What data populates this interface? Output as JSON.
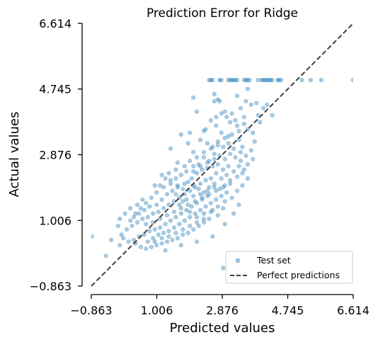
{
  "chart_data": {
    "type": "scatter",
    "title": "Prediction Error for Ridge",
    "xlabel": "Predicted values",
    "ylabel": "Actual values",
    "xlim": [
      -0.863,
      6.614
    ],
    "ylim": [
      -0.863,
      6.614
    ],
    "xticks": [
      "-0.863",
      "1.006",
      "2.876",
      "4.745",
      "6.614"
    ],
    "yticks": [
      "-0.863",
      "1.006",
      "2.876",
      "4.745",
      "6.614"
    ],
    "grid": false,
    "legend_position": "lower-right",
    "colors": {
      "points": "#1f77b4",
      "diagonal": "#404040"
    },
    "series": [
      {
        "name": "Test set",
        "kind": "scatter",
        "points": [
          [
            2.5,
            5.0
          ],
          [
            2.55,
            5.0
          ],
          [
            2.6,
            5.0
          ],
          [
            2.8,
            5.0
          ],
          [
            2.85,
            5.0
          ],
          [
            3.05,
            5.0
          ],
          [
            3.1,
            5.0
          ],
          [
            3.15,
            5.0
          ],
          [
            3.2,
            5.0
          ],
          [
            3.25,
            5.0
          ],
          [
            3.3,
            5.0
          ],
          [
            3.5,
            5.0
          ],
          [
            3.55,
            5.0
          ],
          [
            3.6,
            5.0
          ],
          [
            3.65,
            5.0
          ],
          [
            3.9,
            5.0
          ],
          [
            4.0,
            5.0
          ],
          [
            4.05,
            5.0
          ],
          [
            4.1,
            5.0
          ],
          [
            4.15,
            5.0
          ],
          [
            4.2,
            5.0
          ],
          [
            4.25,
            5.0
          ],
          [
            4.3,
            5.0
          ],
          [
            4.45,
            5.0
          ],
          [
            4.5,
            5.0
          ],
          [
            4.55,
            5.0
          ],
          [
            5.15,
            5.0
          ],
          [
            5.4,
            5.0
          ],
          [
            5.7,
            5.0
          ],
          [
            6.61,
            5.0
          ],
          [
            2.05,
            4.5
          ],
          [
            2.65,
            4.6
          ],
          [
            2.75,
            4.45
          ],
          [
            2.65,
            4.4
          ],
          [
            2.8,
            4.4
          ],
          [
            3.3,
            4.55
          ],
          [
            3.55,
            4.4
          ],
          [
            3.7,
            4.3
          ],
          [
            3.85,
            4.35
          ],
          [
            4.15,
            4.3
          ],
          [
            4.05,
            4.2
          ],
          [
            3.4,
            4.2
          ],
          [
            2.95,
            4.1
          ],
          [
            3.15,
            4.05
          ],
          [
            2.7,
            3.95
          ],
          [
            3.5,
            3.95
          ],
          [
            3.9,
            4.0
          ],
          [
            4.3,
            4.0
          ],
          [
            3.1,
            3.8
          ],
          [
            3.3,
            3.7
          ],
          [
            2.4,
            3.6
          ],
          [
            1.95,
            3.5
          ],
          [
            2.7,
            3.7
          ],
          [
            3.6,
            3.6
          ],
          [
            3.75,
            3.5
          ],
          [
            3.95,
            3.8
          ],
          [
            3.05,
            3.4
          ],
          [
            3.8,
            3.25
          ],
          [
            3.45,
            3.1
          ],
          [
            1.6,
            2.65
          ],
          [
            1.4,
            3.05
          ],
          [
            1.9,
            3.2
          ],
          [
            2.05,
            2.95
          ],
          [
            2.25,
            3.3
          ],
          [
            2.45,
            3.2
          ],
          [
            2.6,
            3.1
          ],
          [
            2.75,
            3.25
          ],
          [
            2.9,
            3.1
          ],
          [
            3.05,
            3.2
          ],
          [
            3.2,
            3.05
          ],
          [
            3.35,
            3.3
          ],
          [
            3.1,
            2.9
          ],
          [
            3.25,
            2.8
          ],
          [
            3.4,
            2.7
          ],
          [
            2.95,
            2.75
          ],
          [
            2.8,
            2.85
          ],
          [
            2.65,
            2.9
          ],
          [
            2.5,
            2.7
          ],
          [
            2.35,
            2.8
          ],
          [
            2.2,
            2.6
          ],
          [
            2.05,
            2.55
          ],
          [
            1.85,
            2.4
          ],
          [
            1.7,
            2.3
          ],
          [
            1.55,
            2.2
          ],
          [
            1.25,
            2.2
          ],
          [
            1.1,
            2.0
          ],
          [
            1.4,
            2.05
          ],
          [
            1.6,
            1.95
          ],
          [
            1.8,
            2.05
          ],
          [
            2.0,
            2.2
          ],
          [
            2.15,
            2.35
          ],
          [
            2.3,
            2.45
          ],
          [
            2.45,
            2.5
          ],
          [
            2.6,
            2.55
          ],
          [
            2.75,
            2.6
          ],
          [
            2.9,
            2.45
          ],
          [
            3.05,
            2.55
          ],
          [
            3.2,
            2.4
          ],
          [
            3.35,
            2.55
          ],
          [
            3.5,
            2.45
          ],
          [
            3.0,
            2.3
          ],
          [
            2.85,
            2.2
          ],
          [
            2.7,
            2.35
          ],
          [
            2.55,
            2.2
          ],
          [
            2.4,
            2.15
          ],
          [
            2.25,
            2.05
          ],
          [
            2.1,
            1.95
          ],
          [
            1.95,
            1.85
          ],
          [
            1.8,
            1.75
          ],
          [
            1.65,
            1.65
          ],
          [
            1.5,
            1.55
          ],
          [
            1.35,
            1.45
          ],
          [
            1.2,
            1.35
          ],
          [
            1.05,
            1.25
          ],
          [
            0.9,
            1.2
          ],
          [
            0.75,
            1.1
          ],
          [
            0.6,
            1.05
          ],
          [
            0.45,
            0.95
          ],
          [
            0.3,
            0.85
          ],
          [
            0.15,
            0.75
          ],
          [
            0.0,
            0.6
          ],
          [
            -0.1,
            0.85
          ],
          [
            0.25,
            1.0
          ],
          [
            0.4,
            1.2
          ],
          [
            0.55,
            1.35
          ],
          [
            0.7,
            1.5
          ],
          [
            0.85,
            1.65
          ],
          [
            1.0,
            1.8
          ],
          [
            1.15,
            1.6
          ],
          [
            1.3,
            1.75
          ],
          [
            1.45,
            1.85
          ],
          [
            1.6,
            2.0
          ],
          [
            1.75,
            1.9
          ],
          [
            1.9,
            2.1
          ],
          [
            2.05,
            2.0
          ],
          [
            2.2,
            1.9
          ],
          [
            2.35,
            1.8
          ],
          [
            2.5,
            1.95
          ],
          [
            2.65,
            2.05
          ],
          [
            2.8,
            1.9
          ],
          [
            2.95,
            2.0
          ],
          [
            3.1,
            2.15
          ],
          [
            2.45,
            1.7
          ],
          [
            2.3,
            1.6
          ],
          [
            2.15,
            1.5
          ],
          [
            2.0,
            1.4
          ],
          [
            1.85,
            1.3
          ],
          [
            1.7,
            1.2
          ],
          [
            1.55,
            1.1
          ],
          [
            1.4,
            1.0
          ],
          [
            1.25,
            0.9
          ],
          [
            1.1,
            0.8
          ],
          [
            0.95,
            0.75
          ],
          [
            0.8,
            0.7
          ],
          [
            0.65,
            0.6
          ],
          [
            0.5,
            0.55
          ],
          [
            0.35,
            0.45
          ],
          [
            0.2,
            0.4
          ],
          [
            0.05,
            0.5
          ],
          [
            -0.05,
            0.3
          ],
          [
            -0.85,
            0.55
          ],
          [
            -0.3,
            0.45
          ],
          [
            0.4,
            0.35
          ],
          [
            0.55,
            0.25
          ],
          [
            0.75,
            0.4
          ],
          [
            0.9,
            0.5
          ],
          [
            1.05,
            0.6
          ],
          [
            1.2,
            0.65
          ],
          [
            1.35,
            0.7
          ],
          [
            1.5,
            0.8
          ],
          [
            1.65,
            0.9
          ],
          [
            1.8,
            1.0
          ],
          [
            1.95,
            1.1
          ],
          [
            2.1,
            1.2
          ],
          [
            2.25,
            1.3
          ],
          [
            2.4,
            1.4
          ],
          [
            2.55,
            1.5
          ],
          [
            2.7,
            1.6
          ],
          [
            2.85,
            1.7
          ],
          [
            3.0,
            1.8
          ],
          [
            2.6,
            1.3
          ],
          [
            2.75,
            1.15
          ],
          [
            2.9,
            1.35
          ],
          [
            2.5,
            1.05
          ],
          [
            2.35,
            0.95
          ],
          [
            2.2,
            0.85
          ],
          [
            2.05,
            0.75
          ],
          [
            1.9,
            0.65
          ],
          [
            1.75,
            0.6
          ],
          [
            1.6,
            0.5
          ],
          [
            1.45,
            0.45
          ],
          [
            1.3,
            0.4
          ],
          [
            1.15,
            0.35
          ],
          [
            1.0,
            0.3
          ],
          [
            0.85,
            0.25
          ],
          [
            0.7,
            0.2
          ],
          [
            1.25,
            0.15
          ],
          [
            1.7,
            0.3
          ],
          [
            2.15,
            0.4
          ],
          [
            2.6,
            0.55
          ],
          [
            1.8,
            2.55
          ],
          [
            1.55,
            2.45
          ],
          [
            1.35,
            2.35
          ],
          [
            1.15,
            2.3
          ],
          [
            0.95,
            2.0
          ],
          [
            1.0,
            1.45
          ],
          [
            0.8,
            1.4
          ],
          [
            0.65,
            1.3
          ],
          [
            0.5,
            1.2
          ],
          [
            0.35,
            1.1
          ],
          [
            0.7,
            0.9
          ],
          [
            0.9,
            0.95
          ],
          [
            1.1,
            1.05
          ],
          [
            1.3,
            1.15
          ],
          [
            1.5,
            1.25
          ],
          [
            1.7,
            1.35
          ],
          [
            1.9,
            1.45
          ],
          [
            2.1,
            1.55
          ],
          [
            2.3,
            1.65
          ],
          [
            2.5,
            1.75
          ],
          [
            2.7,
            1.85
          ],
          [
            2.9,
            1.95
          ],
          [
            3.1,
            2.05
          ],
          [
            3.3,
            2.25
          ],
          [
            3.45,
            2.35
          ],
          [
            3.6,
            2.6
          ],
          [
            3.75,
            2.75
          ],
          [
            3.55,
            2.85
          ],
          [
            3.7,
            3.0
          ],
          [
            3.4,
            2.95
          ],
          [
            1.65,
            1.45
          ],
          [
            1.85,
            1.6
          ],
          [
            2.05,
            1.7
          ],
          [
            2.25,
            1.75
          ],
          [
            2.45,
            1.85
          ],
          [
            2.65,
            1.95
          ],
          [
            2.05,
            2.4
          ],
          [
            2.25,
            2.55
          ],
          [
            2.45,
            2.65
          ],
          [
            2.65,
            2.75
          ],
          [
            1.95,
            2.7
          ],
          [
            2.15,
            2.8
          ],
          [
            2.35,
            2.95
          ],
          [
            2.55,
            3.05
          ],
          [
            2.75,
            3.15
          ],
          [
            2.95,
            3.35
          ],
          [
            3.15,
            3.45
          ],
          [
            3.35,
            3.55
          ],
          [
            2.85,
            3.5
          ],
          [
            3.25,
            3.85
          ],
          [
            0.6,
            1.6
          ],
          [
            0.45,
            1.45
          ],
          [
            0.25,
            1.35
          ],
          [
            0.1,
            1.2
          ],
          [
            -0.05,
            1.05
          ],
          [
            1.2,
            1.95
          ],
          [
            1.4,
            2.15
          ],
          [
            2.95,
            0.9
          ],
          [
            3.2,
            1.2
          ],
          [
            3.35,
            1.45
          ],
          [
            1.7,
            3.45
          ],
          [
            2.35,
            3.55
          ],
          [
            2.55,
            3.85
          ],
          [
            2.85,
            4.05
          ],
          [
            3.6,
            4.75
          ],
          [
            2.15,
            4.1
          ],
          [
            3.0,
            3.95
          ],
          [
            3.5,
            3.75
          ],
          [
            1.55,
            1.75
          ],
          [
            1.75,
            1.55
          ],
          [
            1.95,
            1.25
          ],
          [
            2.15,
            1.1
          ],
          [
            2.35,
            1.2
          ],
          [
            2.55,
            1.25
          ],
          [
            2.75,
            1.4
          ],
          [
            2.95,
            1.55
          ],
          [
            3.15,
            1.65
          ],
          [
            3.3,
            1.85
          ],
          [
            3.45,
            2.0
          ],
          [
            3.6,
            2.2
          ],
          [
            0.95,
            0.4
          ],
          [
            1.15,
            0.5
          ],
          [
            1.35,
            0.55
          ],
          [
            1.55,
            0.65
          ],
          [
            1.75,
            0.75
          ],
          [
            1.95,
            0.85
          ],
          [
            2.15,
            0.95
          ],
          [
            2.35,
            1.05
          ],
          [
            -0.45,
            0.0
          ],
          [
            2.9,
            -0.35
          ]
        ]
      },
      {
        "name": "Perfect predictions",
        "kind": "line",
        "points": [
          [
            -0.863,
            -0.863
          ],
          [
            6.614,
            6.614
          ]
        ]
      }
    ]
  }
}
